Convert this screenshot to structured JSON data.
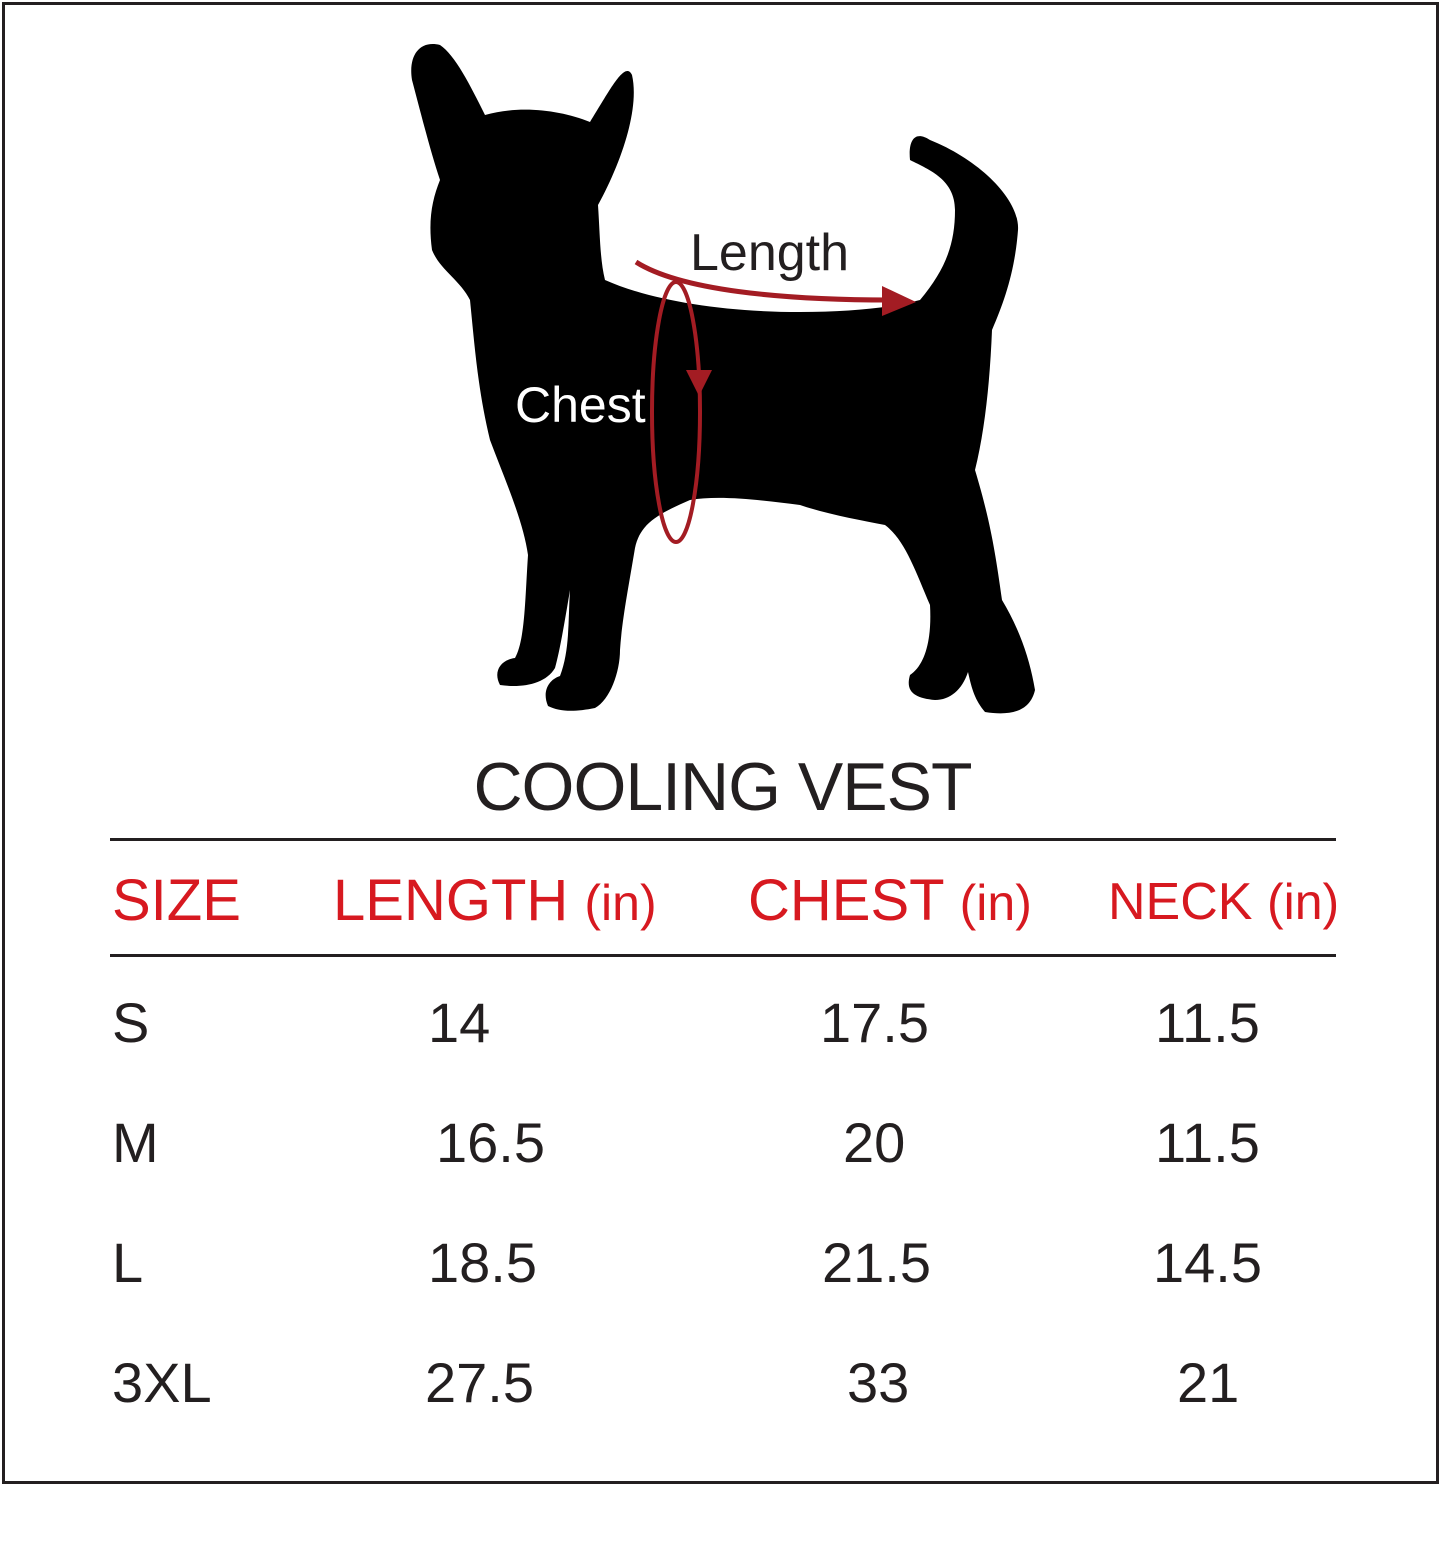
{
  "diagram": {
    "length_label": "Length",
    "chest_label": "Chest"
  },
  "title": "COOLING VEST",
  "table": {
    "headers": [
      {
        "name": "SIZE",
        "unit": ""
      },
      {
        "name": "LENGTH",
        "unit": "(in)"
      },
      {
        "name": "CHEST",
        "unit": "(in)"
      },
      {
        "name": "NECK",
        "unit": "(in)"
      }
    ],
    "rows": [
      {
        "size": "S",
        "length": "14",
        "chest": "17.5",
        "neck": "11.5"
      },
      {
        "size": "M",
        "length": "16.5",
        "chest": "20",
        "neck": "11.5"
      },
      {
        "size": "L",
        "length": "18.5",
        "chest": "21.5",
        "neck": "14.5"
      },
      {
        "size": "3XL",
        "length": "27.5",
        "chest": "33",
        "neck": "21"
      }
    ]
  },
  "colors": {
    "header_red": "#d71920",
    "arrow_red": "#a31c23",
    "text_black": "#231f20",
    "silhouette": "#000000"
  }
}
